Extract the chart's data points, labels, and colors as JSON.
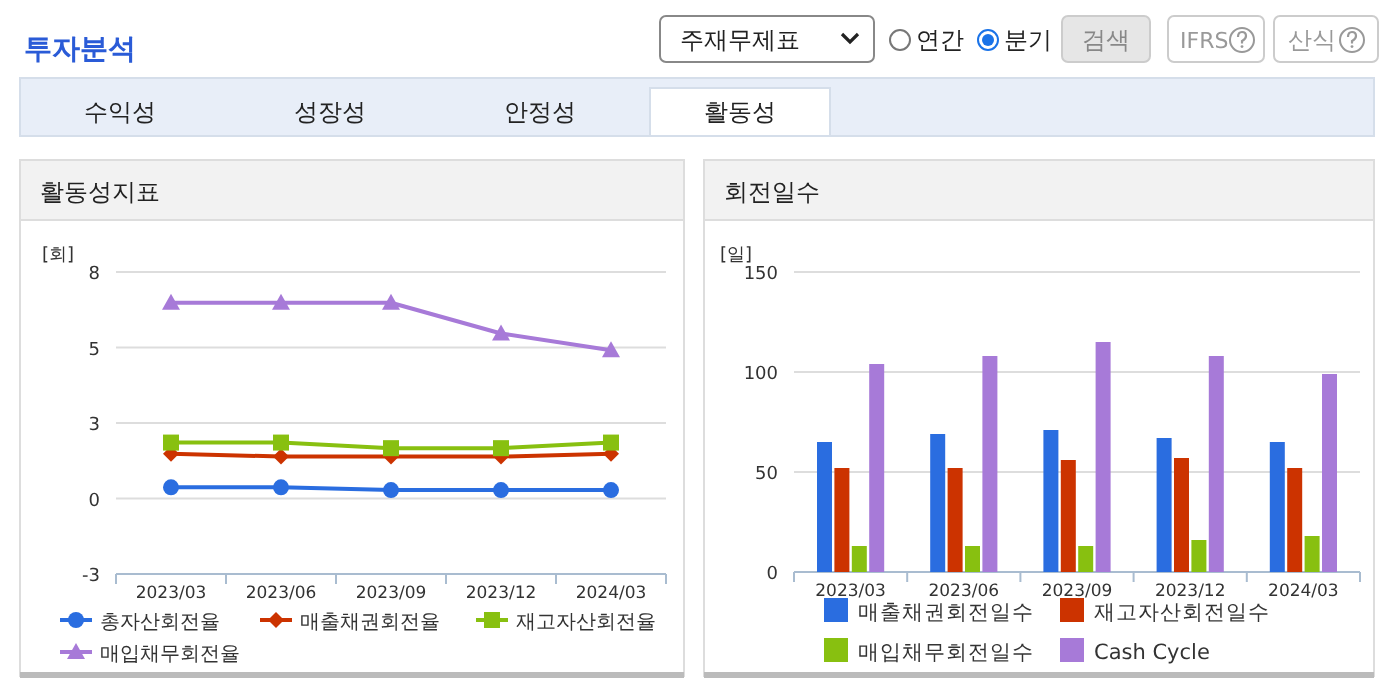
{
  "chart_data": [
    {
      "type": "other",
      "title": "투자분석",
      "annotations": [
        "주재무제표",
        "연간",
        "분기",
        "검색",
        "IFRS",
        "산식",
        "수익성",
        "성장성",
        "안정성",
        "활동성"
      ]
    },
    {
      "type": "line",
      "title": "활동성지표",
      "ylabel": "[회]",
      "categories": [
        "2023/03",
        "2023/06",
        "2023/09",
        "2023/12",
        "2024/03"
      ],
      "ylim": [
        -2.7,
        8.1
      ],
      "yticks": [
        {
          "value": -2.7,
          "label": "-3"
        },
        {
          "value": 0,
          "label": "0"
        },
        {
          "value": 2.7,
          "label": "3"
        },
        {
          "value": 5.4,
          "label": "5"
        },
        {
          "value": 8.1,
          "label": "8"
        }
      ],
      "grid": "y",
      "legend": "bottom",
      "series": [
        {
          "name": "총자산회전율",
          "color": "#2a6de0",
          "marker": "circle",
          "values": [
            0.4,
            0.4,
            0.3,
            0.3,
            0.3
          ]
        },
        {
          "name": "매출채권회전율",
          "color": "#cc3300",
          "marker": "diamond",
          "values": [
            1.6,
            1.5,
            1.5,
            1.5,
            1.6
          ]
        },
        {
          "name": "재고자산회전율",
          "color": "#88c010",
          "marker": "square",
          "values": [
            2.0,
            2.0,
            1.8,
            1.8,
            2.0
          ]
        },
        {
          "name": "매입채무회전율",
          "color": "#a77ad8",
          "marker": "triangle",
          "values": [
            7.0,
            7.0,
            7.0,
            5.9,
            5.3
          ]
        }
      ]
    },
    {
      "type": "bar",
      "title": "회전일수",
      "ylabel": "[일]",
      "categories": [
        "2023/03",
        "2023/06",
        "2023/09",
        "2023/12",
        "2024/03"
      ],
      "ylim": [
        0,
        150
      ],
      "yticks": [
        0,
        50,
        100,
        150
      ],
      "grid": "y",
      "legend": "bottom",
      "series": [
        {
          "name": "매출채권회전일수",
          "color": "#2a6de0",
          "values": [
            65,
            69,
            71,
            67,
            65
          ]
        },
        {
          "name": "재고자산회전일수",
          "color": "#cc3300",
          "values": [
            52,
            52,
            56,
            57,
            52
          ]
        },
        {
          "name": "매입채무회전일수",
          "color": "#88c010",
          "values": [
            13,
            13,
            13,
            16,
            18
          ]
        },
        {
          "name": "Cash Cycle",
          "color": "#a77ad8",
          "values": [
            104,
            108,
            115,
            108,
            99
          ]
        }
      ]
    }
  ]
}
